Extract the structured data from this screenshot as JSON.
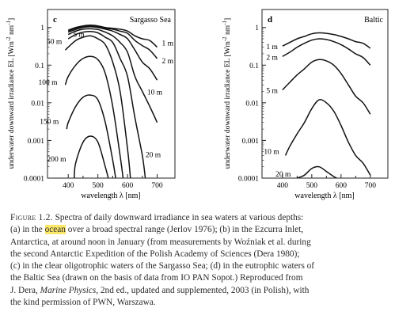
{
  "figure": {
    "panels": [
      {
        "id": "c",
        "letter": "c",
        "title": "Sargasso Sea",
        "ylabel": "underwater downward irradiance  E_L [Wm^-2 nm^-1]",
        "xlabel": "wavelength  λ [nm]",
        "yticks": [
          "1",
          "0.1",
          "0.01",
          "0.001",
          "0.0001"
        ],
        "xticks": [
          "400",
          "500",
          "600",
          "700"
        ]
      },
      {
        "id": "d",
        "letter": "d",
        "title": "Baltic",
        "ylabel": "underwater downward irradiance  E_L [Wm^-2 nm^-1]",
        "xlabel": "wavelength  λ [nm]",
        "yticks": [
          "1",
          "0.1",
          "0.01",
          "0.001",
          "0.0001"
        ],
        "xticks": [
          "400",
          "500",
          "600",
          "700"
        ]
      }
    ]
  },
  "chart_data": [
    {
      "type": "line",
      "panel": "c",
      "title": "Sargasso Sea",
      "xlabel": "wavelength λ [nm]",
      "ylabel": "underwater downward irradiance E_L [Wm^-2 nm^-1]",
      "xlim": [
        330,
        760
      ],
      "ylim": [
        0.0001,
        3
      ],
      "yscale": "log",
      "series": [
        {
          "name": "1 m",
          "x": [
            400,
            425,
            450,
            475,
            500,
            525,
            550,
            575,
            600,
            625,
            650,
            675,
            700
          ],
          "y": [
            0.85,
            1.0,
            1.1,
            1.15,
            1.1,
            1.0,
            0.95,
            0.9,
            0.8,
            0.6,
            0.5,
            0.45,
            0.3
          ]
        },
        {
          "name": "2 m",
          "x": [
            400,
            425,
            450,
            475,
            500,
            525,
            550,
            575,
            600,
            625,
            650,
            675,
            700
          ],
          "y": [
            0.8,
            0.95,
            1.05,
            1.1,
            1.05,
            0.95,
            0.9,
            0.8,
            0.7,
            0.45,
            0.33,
            0.25,
            0.15
          ]
        },
        {
          "name": "5 m",
          "x": [
            400,
            425,
            450,
            475,
            500,
            525,
            550,
            575,
            600,
            625,
            650,
            675,
            700
          ],
          "y": [
            0.75,
            0.88,
            1.0,
            1.05,
            1.0,
            0.9,
            0.8,
            0.65,
            0.5,
            0.25,
            0.12,
            0.08,
            0.04
          ]
        },
        {
          "name": "10 m",
          "x": [
            400,
            425,
            450,
            475,
            500,
            525,
            550,
            575,
            600,
            625,
            650,
            675,
            700
          ],
          "y": [
            0.65,
            0.8,
            0.9,
            0.92,
            0.88,
            0.75,
            0.6,
            0.4,
            0.22,
            0.05,
            0.02,
            0.008,
            0.003
          ]
        },
        {
          "name": "20 m",
          "x": [
            400,
            425,
            450,
            475,
            500,
            525,
            550,
            575,
            600,
            625,
            650,
            660
          ],
          "y": [
            0.5,
            0.65,
            0.75,
            0.78,
            0.72,
            0.55,
            0.4,
            0.15,
            0.05,
            0.004,
            0.0004,
            0.0001
          ]
        },
        {
          "name": "50 m",
          "x": [
            390,
            400,
            425,
            450,
            475,
            500,
            525,
            550,
            575,
            600,
            610
          ],
          "y": [
            0.25,
            0.3,
            0.45,
            0.55,
            0.6,
            0.5,
            0.35,
            0.12,
            0.02,
            0.0006,
            0.0001
          ]
        },
        {
          "name": "100 m",
          "x": [
            390,
            400,
            425,
            450,
            475,
            500,
            525,
            550,
            575,
            585
          ],
          "y": [
            0.03,
            0.05,
            0.1,
            0.15,
            0.17,
            0.14,
            0.06,
            0.008,
            0.0004,
            0.0001
          ]
        },
        {
          "name": "150 m",
          "x": [
            395,
            400,
            425,
            450,
            475,
            500,
            525,
            550,
            560
          ],
          "y": [
            0.002,
            0.003,
            0.008,
            0.014,
            0.016,
            0.012,
            0.003,
            0.0003,
            0.0001
          ]
        },
        {
          "name": "200 m",
          "x": [
            420,
            425,
            450,
            475,
            500,
            525,
            535
          ],
          "y": [
            0.0001,
            0.00025,
            0.0009,
            0.0013,
            0.0009,
            0.0002,
            0.0001
          ]
        }
      ]
    },
    {
      "type": "line",
      "panel": "d",
      "title": "Baltic",
      "xlabel": "wavelength λ [nm]",
      "ylabel": "underwater downward irradiance E_L [Wm^-2 nm^-1]",
      "xlim": [
        330,
        760
      ],
      "ylim": [
        0.0001,
        3
      ],
      "yscale": "log",
      "series": [
        {
          "name": "1 m",
          "x": [
            400,
            425,
            450,
            475,
            500,
            525,
            550,
            575,
            600,
            625,
            650,
            675,
            700
          ],
          "y": [
            0.32,
            0.4,
            0.5,
            0.58,
            0.68,
            0.72,
            0.7,
            0.65,
            0.58,
            0.5,
            0.42,
            0.38,
            0.28
          ]
        },
        {
          "name": "2 m",
          "x": [
            400,
            425,
            450,
            475,
            500,
            525,
            550,
            575,
            600,
            625,
            650,
            675,
            700
          ],
          "y": [
            0.17,
            0.22,
            0.3,
            0.38,
            0.46,
            0.5,
            0.48,
            0.42,
            0.35,
            0.27,
            0.2,
            0.16,
            0.1
          ]
        },
        {
          "name": "5 m",
          "x": [
            400,
            425,
            450,
            475,
            500,
            525,
            550,
            575,
            600,
            625,
            650,
            675,
            700
          ],
          "y": [
            0.022,
            0.035,
            0.055,
            0.08,
            0.12,
            0.14,
            0.13,
            0.1,
            0.06,
            0.03,
            0.015,
            0.01,
            0.005
          ]
        },
        {
          "name": "10 m",
          "x": [
            410,
            425,
            450,
            475,
            500,
            525,
            550,
            575,
            600,
            625,
            650,
            675,
            700
          ],
          "y": [
            0.0004,
            0.0007,
            0.0015,
            0.003,
            0.007,
            0.012,
            0.01,
            0.006,
            0.0025,
            0.0009,
            0.0004,
            0.00025,
            0.00012
          ]
        },
        {
          "name": "20 m",
          "x": [
            450,
            475,
            500,
            525,
            550,
            575,
            585
          ],
          "y": [
            0.0001,
            0.00012,
            0.00018,
            0.0002,
            0.00015,
            0.00011,
            0.0001
          ]
        }
      ]
    }
  ],
  "caption": {
    "figure_label": "Figure 1.2.",
    "lines": [
      [
        " Spectra of daily downward irradiance in sea waters at various depths:"
      ],
      [
        "(a) in the ",
        {
          "hl": "ocean"
        },
        " over a broad spectral range (Jerlov 1976); (b) in the Ezcurra Inlet,"
      ],
      [
        "Antarctica, at around noon in January (from measurements by Woźniak et al. during"
      ],
      [
        "the second Antarctic Expedition of the Polish Academy of Sciences (Dera 1980);"
      ],
      [
        "(c) in the clear oligotrophic waters of the Sargasso Sea; (d) in the eutrophic waters of"
      ],
      [
        "the Baltic Sea (drawn on the basis of data from IO PAN Sopot.) Reproduced from"
      ],
      [
        "J. Dera, ",
        {
          "i": "Marine Physics"
        },
        ", 2nd ed., updated and supplemented, 2003 (in Polish), with"
      ],
      [
        "the kind permission of PWN, Warszawa."
      ]
    ]
  }
}
